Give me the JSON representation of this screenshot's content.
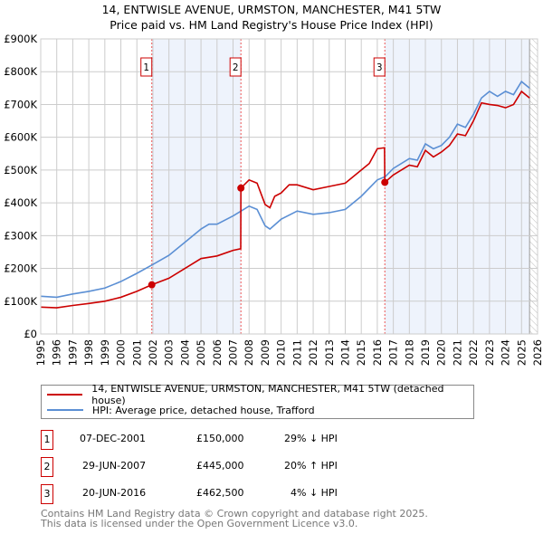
{
  "chart_data": {
    "type": "line",
    "title": "14, ENTWISLE AVENUE, URMSTON, MANCHESTER, M41 5TW",
    "subtitle": "Price paid vs. HM Land Registry's House Price Index (HPI)",
    "xlim": [
      1995,
      2026
    ],
    "ylim": [
      0,
      900000
    ],
    "yticks": [
      {
        "v": 0,
        "label": "£0"
      },
      {
        "v": 100000,
        "label": "£100K"
      },
      {
        "v": 200000,
        "label": "£200K"
      },
      {
        "v": 300000,
        "label": "£300K"
      },
      {
        "v": 400000,
        "label": "£400K"
      },
      {
        "v": 500000,
        "label": "£500K"
      },
      {
        "v": 600000,
        "label": "£600K"
      },
      {
        "v": 700000,
        "label": "£700K"
      },
      {
        "v": 800000,
        "label": "£800K"
      },
      {
        "v": 900000,
        "label": "£900K"
      }
    ],
    "xticks": [
      "1995",
      "1996",
      "1997",
      "1998",
      "1999",
      "2000",
      "2001",
      "2002",
      "2003",
      "2004",
      "2005",
      "2006",
      "2007",
      "2008",
      "2009",
      "2010",
      "2011",
      "2012",
      "2013",
      "2014",
      "2015",
      "2016",
      "2017",
      "2018",
      "2019",
      "2020",
      "2021",
      "2022",
      "2023",
      "2024",
      "2025",
      "2026"
    ],
    "grid": true,
    "shaded_ranges": [
      [
        2001.93,
        2007.49
      ],
      [
        2016.47,
        2025.5
      ]
    ],
    "hatched_from": 2025.5,
    "series": [
      {
        "name": "14, ENTWISLE AVENUE, URMSTON, MANCHESTER, M41 5TW (detached house)",
        "color": "#cc0000",
        "x": [
          1995,
          1996,
          1997,
          1998,
          1999,
          2000,
          2001,
          2001.93,
          2003,
          2004,
          2005,
          2006,
          2007,
          2007.48,
          2007.49,
          2008,
          2008.5,
          2009,
          2009.3,
          2009.6,
          2010,
          2010.5,
          2011,
          2012,
          2013,
          2014,
          2015,
          2015.5,
          2016,
          2016.45,
          2016.47,
          2017,
          2018,
          2018.5,
          2019,
          2019.5,
          2020,
          2020.5,
          2021,
          2021.5,
          2022,
          2022.5,
          2023,
          2023.5,
          2024,
          2024.5,
          2025,
          2025.5
        ],
        "y": [
          82000,
          80000,
          87000,
          93000,
          100000,
          112000,
          130000,
          150000,
          170000,
          200000,
          230000,
          238000,
          255000,
          260000,
          445000,
          470000,
          460000,
          395000,
          385000,
          420000,
          430000,
          455000,
          455000,
          440000,
          450000,
          460000,
          500000,
          520000,
          565000,
          568000,
          462500,
          485000,
          515000,
          510000,
          560000,
          540000,
          555000,
          575000,
          610000,
          605000,
          650000,
          705000,
          700000,
          697000,
          690000,
          700000,
          740000,
          720000
        ]
      },
      {
        "name": "HPI: Average price, detached house, Trafford",
        "color": "#5b8fd4",
        "x": [
          1995,
          1996,
          1997,
          1998,
          1999,
          2000,
          2001,
          2002,
          2003,
          2004,
          2005,
          2005.5,
          2006,
          2007,
          2007.5,
          2008,
          2008.5,
          2009,
          2009.3,
          2010,
          2011,
          2012,
          2013,
          2014,
          2015,
          2016,
          2016.5,
          2017,
          2018,
          2018.5,
          2019,
          2019.5,
          2020,
          2020.5,
          2021,
          2021.5,
          2022,
          2022.5,
          2023,
          2023.5,
          2024,
          2024.5,
          2025,
          2025.5
        ],
        "y": [
          115000,
          112000,
          122000,
          130000,
          140000,
          160000,
          185000,
          212000,
          240000,
          280000,
          320000,
          335000,
          335000,
          360000,
          375000,
          390000,
          380000,
          330000,
          320000,
          350000,
          375000,
          365000,
          370000,
          380000,
          420000,
          470000,
          480000,
          505000,
          535000,
          530000,
          580000,
          565000,
          575000,
          600000,
          640000,
          630000,
          670000,
          720000,
          740000,
          725000,
          740000,
          730000,
          770000,
          750000
        ]
      }
    ],
    "transactions": [
      {
        "id": "1",
        "x": 2001.93,
        "price": 150000,
        "date": "07-DEC-2001",
        "price_label": "£150,000",
        "hpi": "29% ↓ HPI"
      },
      {
        "id": "2",
        "x": 2007.49,
        "price": 445000,
        "date": "29-JUN-2007",
        "price_label": "£445,000",
        "hpi": "20% ↑ HPI"
      },
      {
        "id": "3",
        "x": 2016.47,
        "price": 462500,
        "date": "20-JUN-2016",
        "price_label": "£462,500",
        "hpi": "4% ↓ HPI"
      }
    ]
  },
  "footer": [
    "Contains HM Land Registry data © Crown copyright and database right 2025.",
    "This data is licensed under the Open Government Licence v3.0."
  ]
}
